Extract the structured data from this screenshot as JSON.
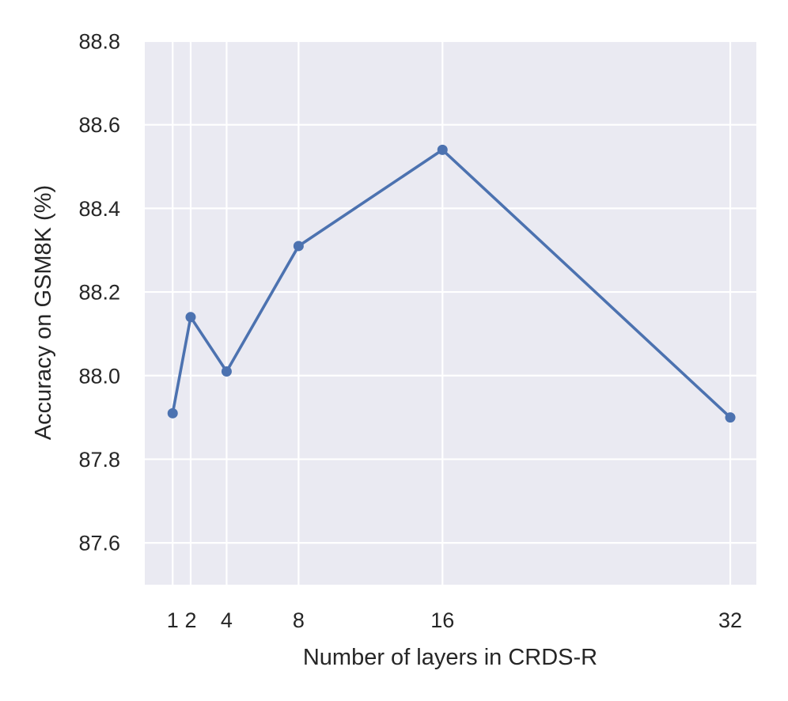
{
  "chart_data": {
    "type": "line",
    "title": "",
    "xlabel": "Number of layers in CRDS-R",
    "ylabel": "Accuracy on GSM8K (%)",
    "xlim": [
      -0.55,
      33.45
    ],
    "ylim": [
      87.5,
      88.8
    ],
    "x_ticks": [
      1,
      2,
      4,
      8,
      16,
      32
    ],
    "x_tick_labels": [
      "1",
      "2",
      "4",
      "8",
      "16",
      "32"
    ],
    "y_ticks": [
      87.6,
      87.8,
      88.0,
      88.2,
      88.4,
      88.6,
      88.8
    ],
    "y_tick_labels": [
      "87.6",
      "87.8",
      "88.0",
      "88.2",
      "88.4",
      "88.6",
      "88.8"
    ],
    "grid": true,
    "legend": "none",
    "colors": {
      "background": "#EAEAF2",
      "grid": "#FFFFFF",
      "line": "#4C72B0",
      "text": "#262626"
    },
    "series": [
      {
        "x": [
          1,
          2,
          4,
          8,
          16,
          32
        ],
        "values": [
          87.91,
          88.14,
          88.01,
          88.31,
          88.54,
          87.9
        ]
      }
    ]
  }
}
